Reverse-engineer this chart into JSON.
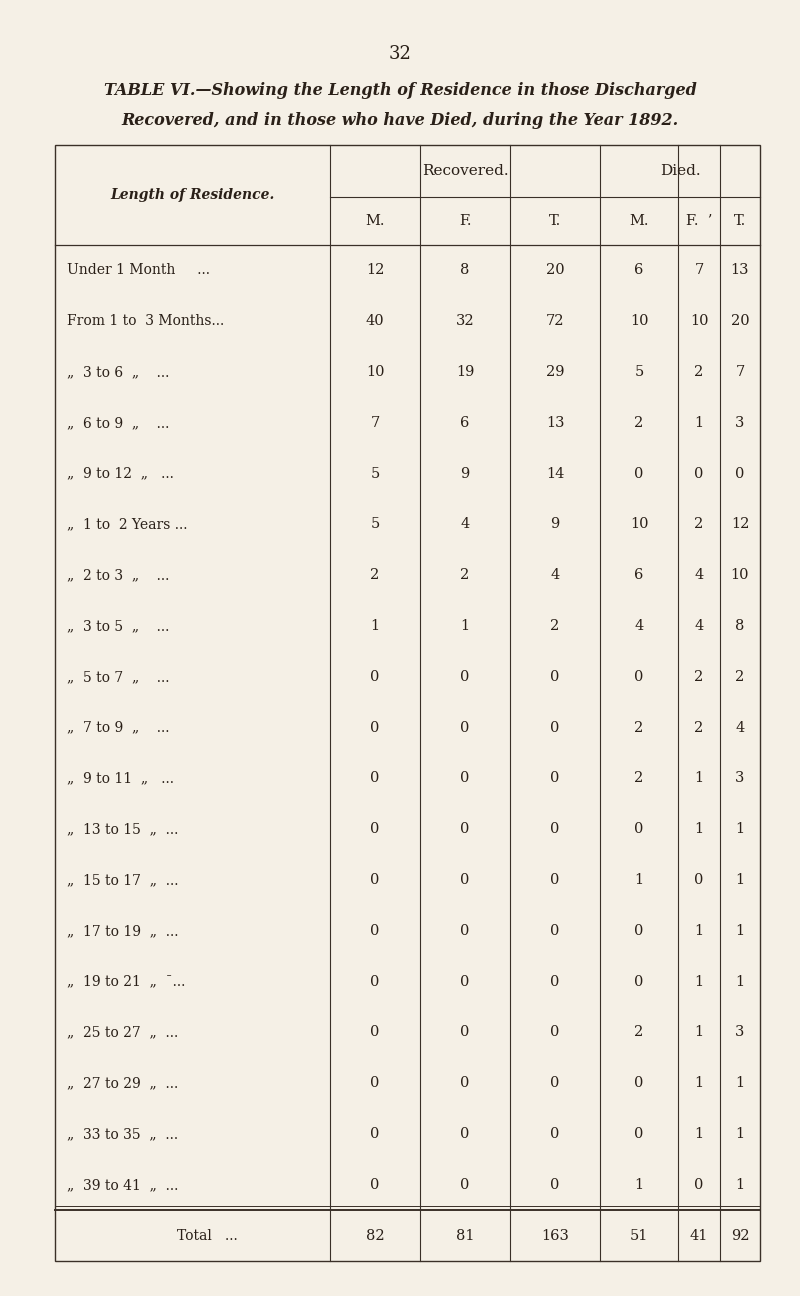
{
  "page_number": "32",
  "title_line1": "TABLE VI.—Showing the Length of Residence in those Discharged",
  "title_line2": "Recovered, and in those who have Died, during the Year 1892.",
  "col_header_left": "Length of Residence.",
  "col_group1": "Recovered.",
  "col_group2": "Died.",
  "sub_headers": [
    "M.",
    "F.",
    "T.",
    "M.",
    "F.  ’",
    "T."
  ],
  "rows": [
    [
      "Under 1 Month     ...",
      12,
      8,
      20,
      6,
      7,
      13
    ],
    [
      "From 1 to  3 Months...",
      40,
      32,
      72,
      10,
      10,
      20
    ],
    [
      "„  3 to 6  „    ...",
      10,
      19,
      29,
      5,
      2,
      7
    ],
    [
      "„  6 to 9  „    ...",
      7,
      6,
      13,
      2,
      1,
      3
    ],
    [
      "„  9 to 12  „   ...",
      5,
      9,
      14,
      0,
      0,
      0
    ],
    [
      "„  1 to  2 Years ...",
      5,
      4,
      9,
      10,
      2,
      12
    ],
    [
      "„  2 to 3  „    ...",
      2,
      2,
      4,
      6,
      4,
      10
    ],
    [
      "„  3 to 5  „    ...",
      1,
      1,
      2,
      4,
      4,
      8
    ],
    [
      "„  5 to 7  „    ...",
      0,
      0,
      0,
      0,
      2,
      2
    ],
    [
      "„  7 to 9  „    ...",
      0,
      0,
      0,
      2,
      2,
      4
    ],
    [
      "„  9 to 11  „   ...",
      0,
      0,
      0,
      2,
      1,
      3
    ],
    [
      "„  13 to 15  „  ...",
      0,
      0,
      0,
      0,
      1,
      1
    ],
    [
      "„  15 to 17  „  ...",
      0,
      0,
      0,
      1,
      0,
      1
    ],
    [
      "„  17 to 19  „  ...",
      0,
      0,
      0,
      0,
      1,
      1
    ],
    [
      "„  19 to 21  „  ¯...",
      0,
      0,
      0,
      0,
      1,
      1
    ],
    [
      "„  25 to 27  „  ...",
      0,
      0,
      0,
      2,
      1,
      3
    ],
    [
      "„  27 to 29  „  ...",
      0,
      0,
      0,
      0,
      1,
      1
    ],
    [
      "„  33 to 35  „  ...",
      0,
      0,
      0,
      0,
      1,
      1
    ],
    [
      "„  39 to 41  „  ...",
      0,
      0,
      0,
      1,
      0,
      1
    ]
  ],
  "total_row": [
    "Total   ...",
    82,
    81,
    163,
    51,
    41,
    92
  ],
  "bg_color": "#f5f0e6",
  "text_color": "#2a2018",
  "line_color": "#3a3028"
}
